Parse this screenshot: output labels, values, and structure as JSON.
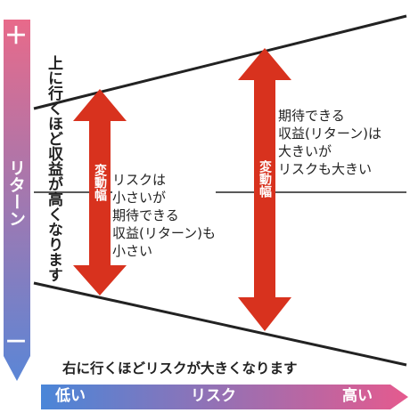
{
  "y_axis": {
    "plus": "＋",
    "label": "リターン",
    "minus": "－",
    "gradient_top": "#e86a8a",
    "gradient_bottom": "#5b86d6"
  },
  "x_axis": {
    "low": "低い",
    "label": "リスク",
    "high": "高い",
    "gradient_left": "#4a86d8",
    "gradient_right": "#e55a8e"
  },
  "left_caption": "上に行くほど収益が高くなります",
  "bottom_caption": "右に行くほどリスクが大きくなります",
  "arrows": {
    "color": "#d8321e",
    "low_risk_label": "変動幅",
    "high_risk_label": "変動幅"
  },
  "notes": {
    "low_risk": "リスクは\n小さいが\n期待できる\n収益(リターン)も\n小さい",
    "high_risk": "期待できる\n収益(リターン)は\n大きいが\nリスクも大きい"
  }
}
